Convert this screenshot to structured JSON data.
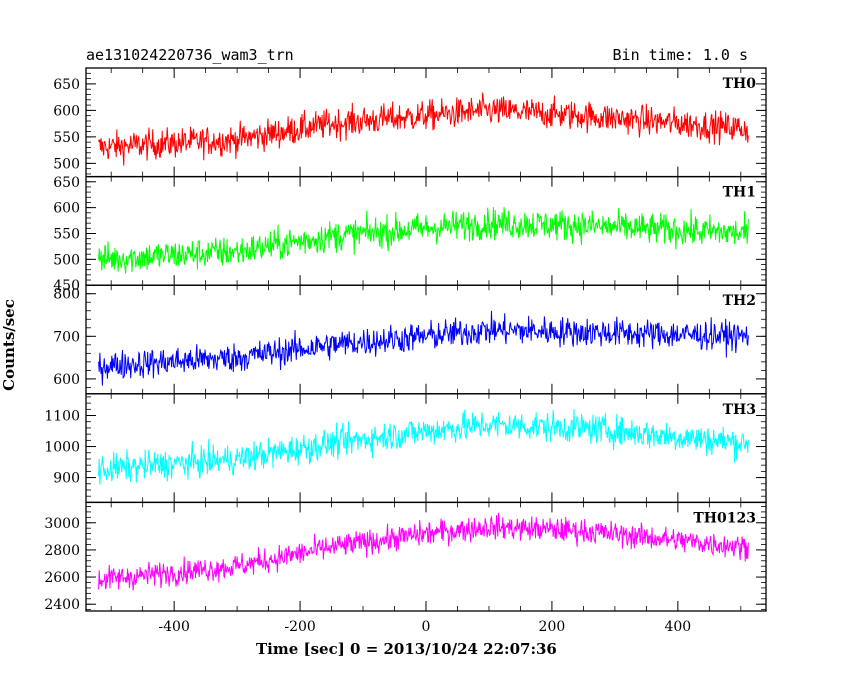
{
  "header": {
    "title": "ae131024220736_wam3_trn",
    "bin_time": "Bin time: 1.0 s"
  },
  "chart_data": {
    "type": "line",
    "xlabel": "Time [sec] 0 = 2013/10/24 22:07:36",
    "ylabel": "Counts/sec",
    "xlim": [
      -540,
      540
    ],
    "x_ticks": [
      "-400",
      "-200",
      "0",
      "200",
      "400"
    ],
    "x_tick_values": [
      -400,
      -200,
      0,
      200,
      400
    ],
    "x_range": [
      -520,
      512
    ],
    "panels": [
      {
        "name": "TH0",
        "color": "#ff0000",
        "ylim": [
          475,
          680
        ],
        "yticks": [
          500,
          550,
          600,
          650
        ],
        "trend": [
          [
            -520,
            530
          ],
          [
            -300,
            545
          ],
          [
            -150,
            575
          ],
          [
            0,
            590
          ],
          [
            100,
            600
          ],
          [
            250,
            590
          ],
          [
            512,
            565
          ]
        ],
        "noise": 28
      },
      {
        "name": "TH1",
        "color": "#00ff00",
        "ylim": [
          450,
          660
        ],
        "yticks": [
          450,
          500,
          550,
          600,
          650
        ],
        "trend": [
          [
            -520,
            500
          ],
          [
            -300,
            515
          ],
          [
            -150,
            545
          ],
          [
            0,
            560
          ],
          [
            100,
            570
          ],
          [
            250,
            565
          ],
          [
            512,
            550
          ]
        ],
        "noise": 30
      },
      {
        "name": "TH2",
        "color": "#0000ff",
        "ylim": [
          565,
          820
        ],
        "yticks": [
          600,
          700,
          800
        ],
        "trend": [
          [
            -520,
            630
          ],
          [
            -300,
            650
          ],
          [
            -150,
            680
          ],
          [
            0,
            700
          ],
          [
            100,
            715
          ],
          [
            250,
            710
          ],
          [
            512,
            700
          ]
        ],
        "noise": 34
      },
      {
        "name": "TH3",
        "color": "#00ffff",
        "ylim": [
          820,
          1170
        ],
        "yticks": [
          900,
          1000,
          1100
        ],
        "trend": [
          [
            -520,
            925
          ],
          [
            -300,
            960
          ],
          [
            -150,
            1010
          ],
          [
            0,
            1050
          ],
          [
            100,
            1070
          ],
          [
            250,
            1060
          ],
          [
            512,
            1010
          ]
        ],
        "noise": 48
      },
      {
        "name": "TH0123",
        "color": "#ff00ff",
        "ylim": [
          2350,
          3150
        ],
        "yticks": [
          2400,
          2600,
          2800,
          3000
        ],
        "trend": [
          [
            -520,
            2580
          ],
          [
            -300,
            2680
          ],
          [
            -150,
            2820
          ],
          [
            0,
            2920
          ],
          [
            100,
            2970
          ],
          [
            250,
            2940
          ],
          [
            512,
            2820
          ]
        ],
        "noise": 90
      }
    ]
  }
}
